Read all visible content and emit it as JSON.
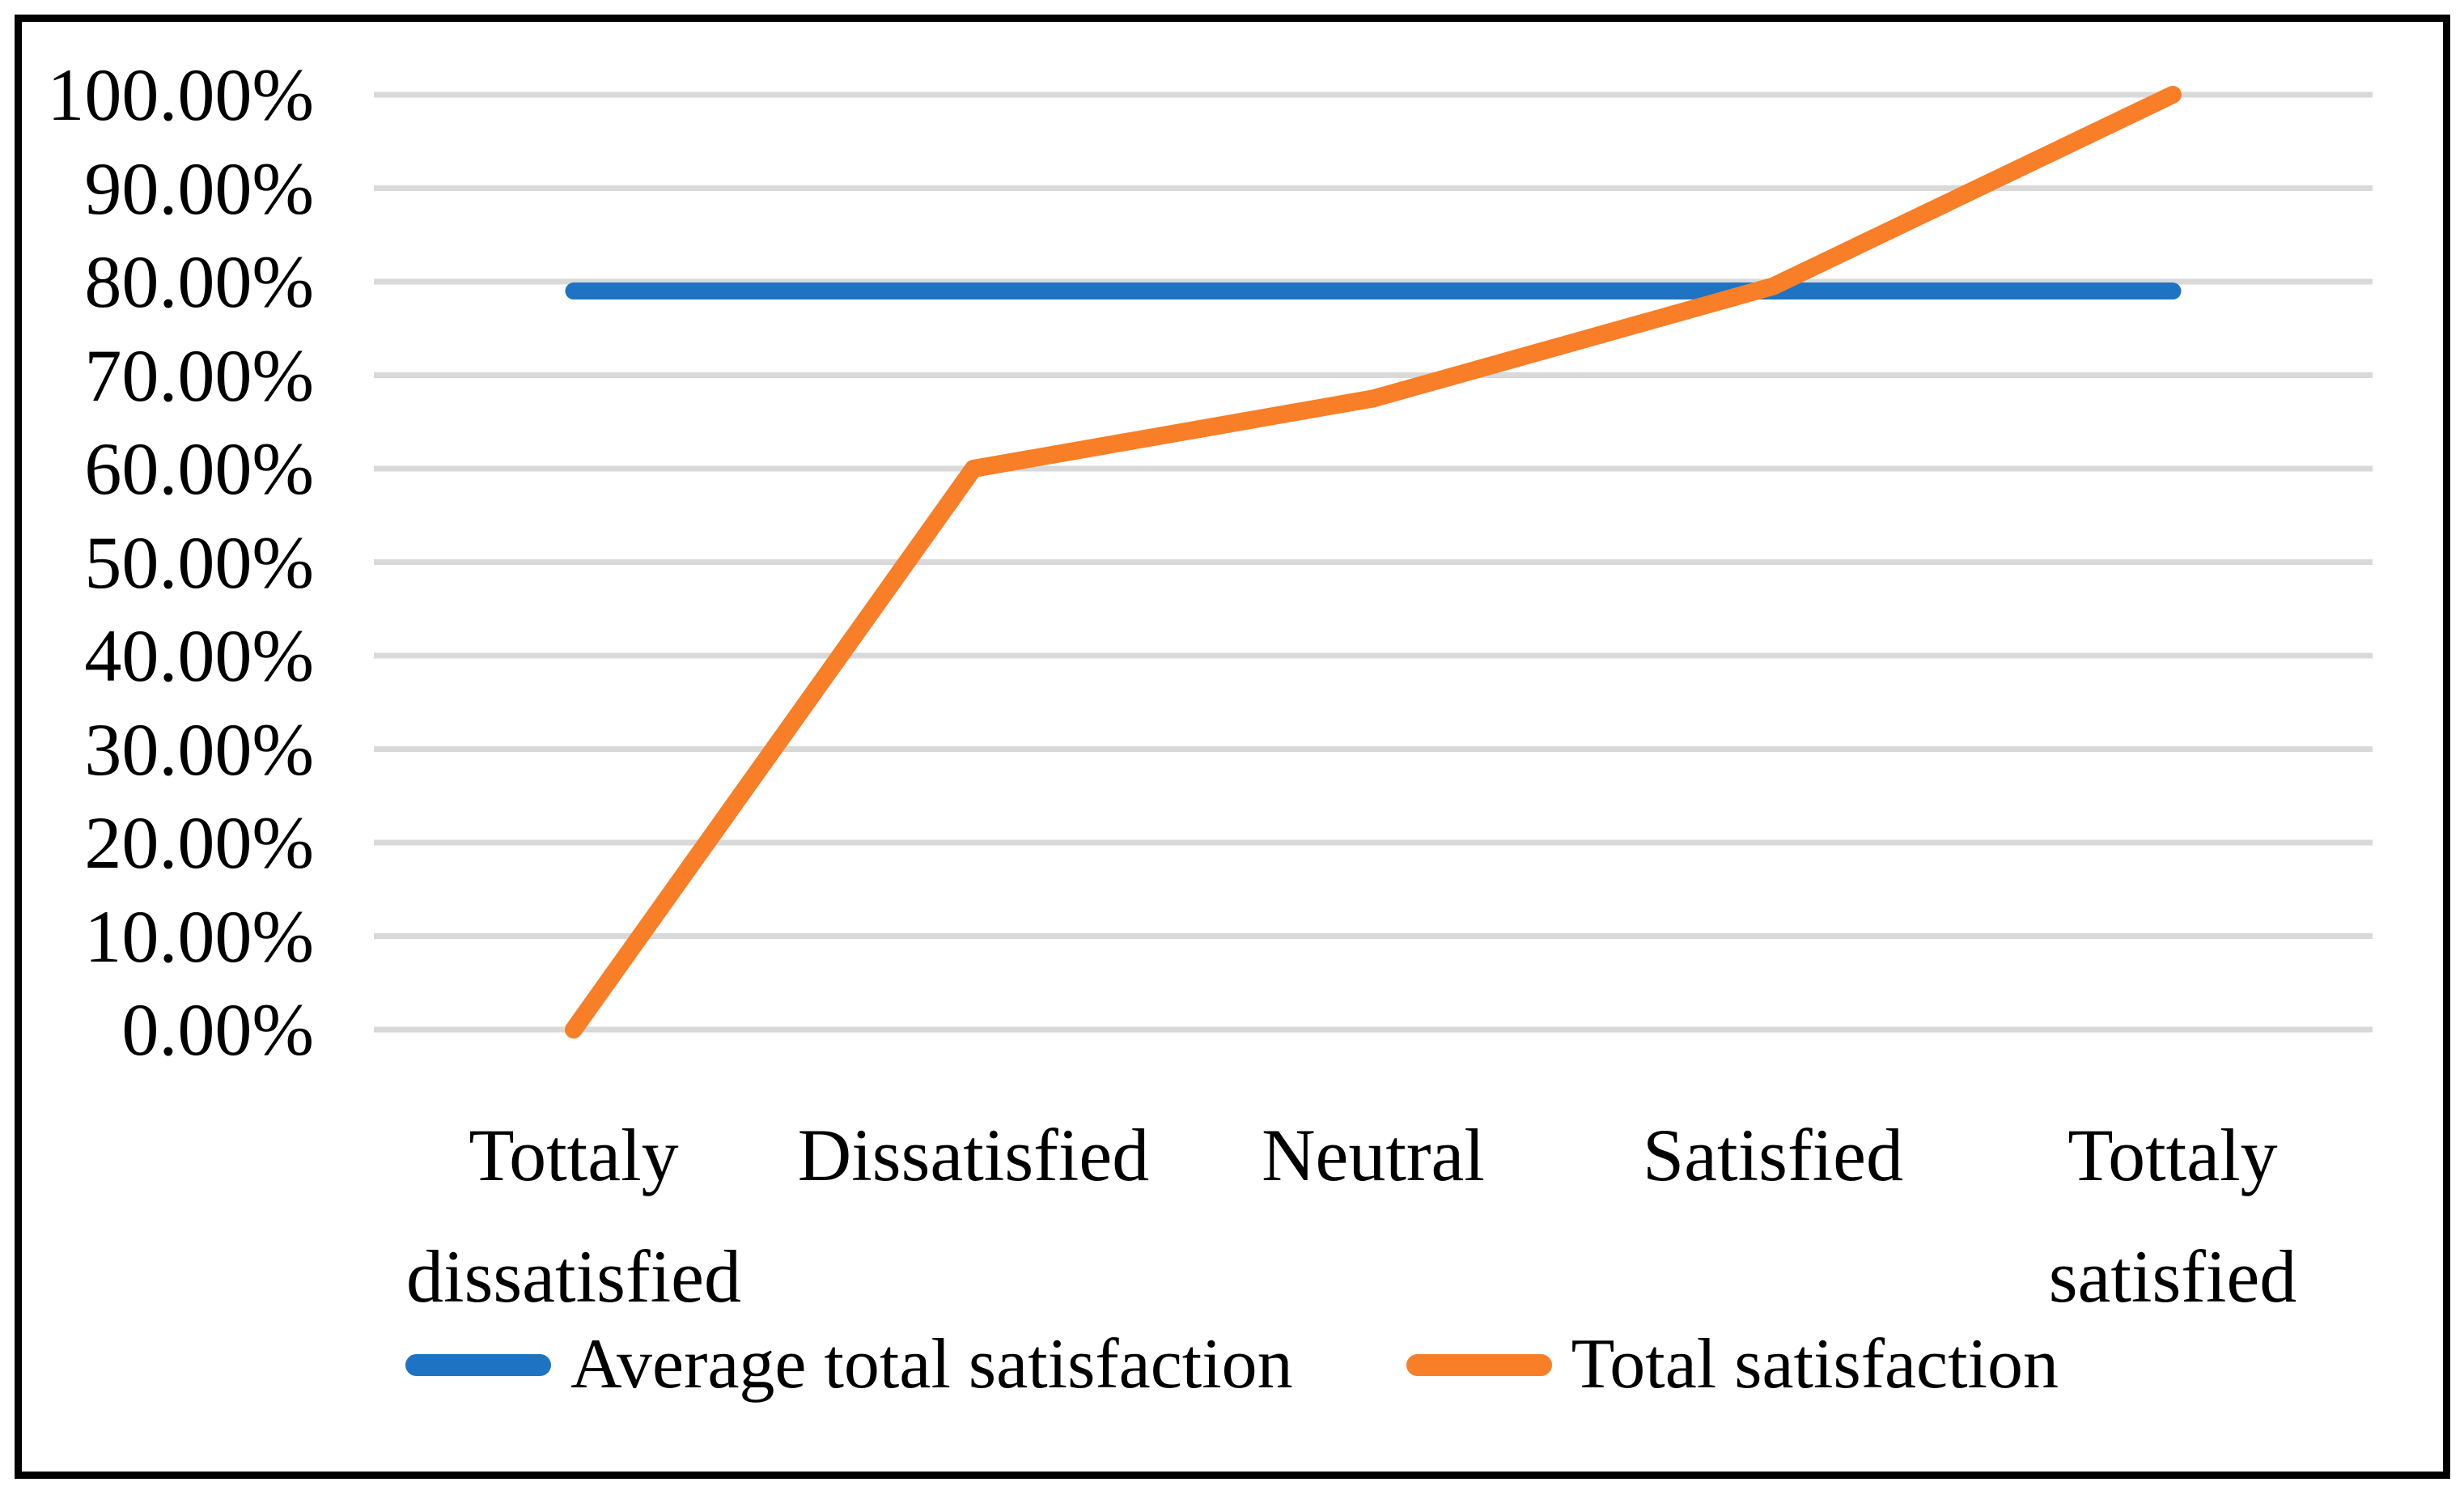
{
  "figure": {
    "background_color": "#ffffff",
    "border_color": "#000000"
  },
  "chart_data": {
    "type": "line",
    "categories": [
      "Tottaly dissatisfied",
      "Dissatisfied",
      "Neutral",
      "Satisfied",
      "Tottaly satisfied"
    ],
    "category_label_lines": [
      [
        "Tottaly",
        "dissatisfied"
      ],
      [
        "Dissatisfied"
      ],
      [
        "Neutral"
      ],
      [
        "Satisfied"
      ],
      [
        "Tottaly",
        "satisfied"
      ]
    ],
    "series": [
      {
        "name": "Average total satisfaction",
        "color": "#1E73C3",
        "values": [
          79.0,
          79.0,
          79.0,
          79.0,
          79.0
        ]
      },
      {
        "name": "Total satisfaction",
        "color": "#F87E28",
        "values": [
          0.0,
          60.0,
          67.5,
          79.5,
          100.0
        ]
      }
    ],
    "ylim": [
      0,
      100
    ],
    "ytick_step": 10,
    "ytick_labels": [
      "0.00%",
      "10.00%",
      "20.00%",
      "30.00%",
      "40.00%",
      "50.00%",
      "60.00%",
      "70.00%",
      "80.00%",
      "90.00%",
      "100.00%"
    ],
    "grid": "horizontal",
    "gridline_color": "#D9D9D9",
    "legend_position": "bottom"
  }
}
